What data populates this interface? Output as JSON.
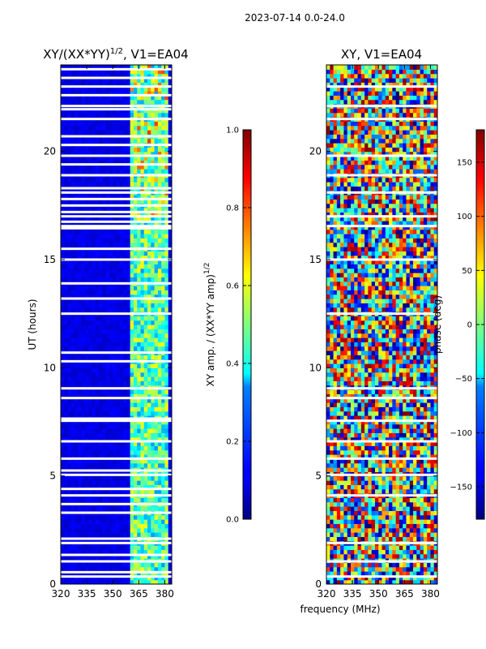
{
  "suptitle": "2023-07-14 0.0-24.0",
  "chart_data": [
    {
      "type": "heatmap",
      "title": "XY/(XX*YY)^{1/2}, V1=EA04",
      "title_main": "XY/(XX*YY)",
      "title_sup": "1/2",
      "title_tail": ", V1=EA04",
      "xlabel": "",
      "ylabel": "UT (hours)",
      "xlim": [
        320,
        384
      ],
      "ylim": [
        0,
        24
      ],
      "xticks": [
        320,
        335,
        350,
        365,
        380
      ],
      "yticks": [
        0,
        5,
        10,
        15,
        20
      ],
      "grid": false,
      "colorbar": {
        "label": "XY amp. / (XX*YY amp)^{1/2}",
        "label_main": "XY amp. / (XX*YY amp)",
        "label_sup": "1/2",
        "range": [
          0.0,
          1.0
        ],
        "ticks": [
          "0.0",
          "0.2",
          "0.4",
          "0.6",
          "0.8",
          "1.0"
        ],
        "tick_values": [
          0.0,
          0.2,
          0.4,
          0.6,
          0.8,
          1.0
        ],
        "colormap": "jet"
      },
      "background_value": 0.07,
      "high_band_mhz": [
        361,
        382
      ],
      "high_band_value": 0.45,
      "gaps_hours": [
        0.35,
        0.55,
        1.05,
        1.35,
        1.9,
        2.1,
        3.3,
        3.7,
        4.1,
        4.4,
        5.05,
        5.25,
        5.8,
        6.6,
        7.55,
        7.65,
        8.6,
        9.05,
        10.3,
        10.7,
        12.5,
        13.2,
        13.9,
        15.0,
        15.5,
        16.45,
        16.55,
        16.75,
        17.0,
        17.2,
        17.5,
        17.8,
        18.1,
        18.3,
        18.9,
        19.4,
        19.8,
        20.3,
        20.7,
        21.5,
        21.95,
        22.1,
        22.6,
        23.0,
        23.4,
        23.8
      ]
    },
    {
      "type": "heatmap",
      "title": "XY, V1=EA04",
      "xlabel": "frequency (MHz)",
      "ylabel": "",
      "xlim": [
        320,
        384
      ],
      "ylim": [
        0,
        24
      ],
      "xticks": [
        320,
        335,
        350,
        365,
        380
      ],
      "yticks": [
        0,
        5,
        10,
        15,
        20
      ],
      "grid": false,
      "colorbar": {
        "label": "phase (deg)",
        "range": [
          -180,
          180
        ],
        "ticks": [
          "−150",
          "−100",
          "−50",
          "0",
          "50",
          "100",
          "150"
        ],
        "tick_values": [
          -150,
          -100,
          -50,
          0,
          50,
          100,
          150
        ],
        "colormap": "jet"
      },
      "gaps_hours": [
        0.35,
        1.05,
        1.9,
        4.1,
        5.05,
        5.8,
        6.6,
        7.55,
        8.6,
        9.05,
        12.5,
        15.0,
        16.55,
        17.0,
        18.1,
        18.9,
        19.8,
        21.5,
        22.1,
        23.0
      ]
    }
  ]
}
